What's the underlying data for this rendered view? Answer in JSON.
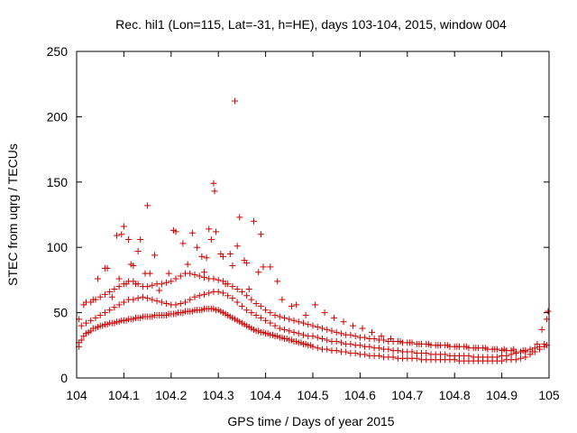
{
  "chart_data": {
    "type": "scatter",
    "title": "Rec. hil1 (Lon=115, Lat=-31, h=HE), days 103-104, 2015, window 004",
    "xlabel": "GPS time / Days of year 2015",
    "ylabel": "STEC from uqrg / TECUs",
    "xlim": [
      104,
      105
    ],
    "ylim": [
      0,
      250
    ],
    "xticks": [
      "104",
      "104.1",
      "104.2",
      "104.3",
      "104.4",
      "104.5",
      "104.6",
      "104.7",
      "104.8",
      "104.9",
      "105"
    ],
    "yticks": [
      "0",
      "50",
      "100",
      "150",
      "200",
      "250"
    ],
    "grid": false,
    "legend": "none",
    "marker": "plus",
    "colors": {
      "points": "#cc0000",
      "axes": "#000000"
    },
    "series": [
      {
        "x": [
          104.005,
          104.005,
          104.01,
          104.015,
          104.02,
          104.025,
          104.03,
          104.035,
          104.04,
          104.045,
          104.05,
          104.055,
          104.06,
          104.065,
          104.07,
          104.075,
          104.08,
          104.085,
          104.09,
          104.095,
          104.1,
          104.105,
          104.11,
          104.115,
          104.12,
          104.125,
          104.13,
          104.135,
          104.14,
          104.145,
          104.15,
          104.155,
          104.16,
          104.165,
          104.17,
          104.175,
          104.18,
          104.185,
          104.19,
          104.195,
          104.2,
          104.205,
          104.21,
          104.215,
          104.22,
          104.225,
          104.23,
          104.235,
          104.24,
          104.245,
          104.25,
          104.255,
          104.26,
          104.265,
          104.27,
          104.275,
          104.28,
          104.285,
          104.29,
          104.295,
          104.3,
          104.305,
          104.31,
          104.315,
          104.32,
          104.325,
          104.33,
          104.335,
          104.34,
          104.345,
          104.35,
          104.355,
          104.36,
          104.365,
          104.37,
          104.375,
          104.38,
          104.385,
          104.39,
          104.395,
          104.4,
          104.405,
          104.41,
          104.415,
          104.42,
          104.425,
          104.43,
          104.435,
          104.44,
          104.445,
          104.45,
          104.455,
          104.46,
          104.465,
          104.47,
          104.475,
          104.48,
          104.485,
          104.49,
          104.495,
          104.5,
          104.51,
          104.52,
          104.53,
          104.54,
          104.55,
          104.56,
          104.57,
          104.58,
          104.59,
          104.6,
          104.61,
          104.62,
          104.63,
          104.64,
          104.65,
          104.66,
          104.67,
          104.68,
          104.69,
          104.7,
          104.71,
          104.72,
          104.73,
          104.74,
          104.75,
          104.76,
          104.77,
          104.78,
          104.79,
          104.8,
          104.81,
          104.82,
          104.83,
          104.84,
          104.85,
          104.86,
          104.87,
          104.88,
          104.89,
          104.9,
          104.91,
          104.92,
          104.93,
          104.94,
          104.95,
          104.96,
          104.97,
          104.98,
          104.99,
          104.995
        ],
        "y": [
          24,
          27,
          29,
          32,
          34,
          35,
          36,
          38,
          38,
          39,
          40,
          40,
          41,
          41,
          42,
          42,
          42,
          43,
          43,
          44,
          44,
          44,
          45,
          45,
          45,
          46,
          46,
          46,
          47,
          47,
          47,
          47,
          47,
          48,
          48,
          48,
          48,
          48,
          48,
          49,
          49,
          49,
          49,
          50,
          50,
          50,
          51,
          51,
          51,
          51,
          52,
          52,
          52,
          52,
          53,
          53,
          53,
          53,
          53,
          52,
          52,
          51,
          50,
          49,
          48,
          47,
          46,
          45,
          44,
          43,
          42,
          41,
          40,
          39,
          38,
          37,
          36,
          36,
          35,
          35,
          34,
          34,
          33,
          33,
          32,
          32,
          31,
          31,
          30,
          30,
          29,
          29,
          28,
          28,
          27,
          27,
          26,
          26,
          25,
          25,
          24,
          23,
          22,
          22,
          21,
          21,
          20,
          20,
          19,
          19,
          18,
          18,
          17,
          17,
          17,
          16,
          16,
          16,
          15,
          15,
          15,
          15,
          15,
          14,
          14,
          14,
          14,
          14,
          14,
          14,
          14,
          13,
          13,
          13,
          13,
          13,
          13,
          13,
          13,
          13,
          13,
          14,
          14,
          14,
          15,
          16,
          18,
          20,
          22,
          24,
          25
        ]
      },
      {
        "x": [
          104.005,
          104.01,
          104.02,
          104.03,
          104.04,
          104.05,
          104.06,
          104.07,
          104.08,
          104.09,
          104.1,
          104.11,
          104.12,
          104.13,
          104.14,
          104.15,
          104.16,
          104.17,
          104.18,
          104.19,
          104.2,
          104.21,
          104.22,
          104.23,
          104.24,
          104.25,
          104.26,
          104.27,
          104.28,
          104.29,
          104.3,
          104.31,
          104.32,
          104.33,
          104.34,
          104.35,
          104.36,
          104.37,
          104.38,
          104.39,
          104.4,
          104.41,
          104.42,
          104.43,
          104.44,
          104.45,
          104.46,
          104.47,
          104.48,
          104.49,
          104.5,
          104.51,
          104.52,
          104.53,
          104.54,
          104.55,
          104.56,
          104.57,
          104.58,
          104.59,
          104.6,
          104.61,
          104.62,
          104.63,
          104.64,
          104.65,
          104.66,
          104.67,
          104.68,
          104.69,
          104.7,
          104.71,
          104.72,
          104.73,
          104.74,
          104.75,
          104.76,
          104.77,
          104.78,
          104.79,
          104.8,
          104.81,
          104.82,
          104.83,
          104.84,
          104.85,
          104.86,
          104.87,
          104.88,
          104.89,
          104.9,
          104.91,
          104.92,
          104.93,
          104.94,
          104.95,
          104.96,
          104.97,
          104.98,
          104.99
        ],
        "y": [
          45,
          40,
          42,
          44,
          46,
          48,
          50,
          52,
          54,
          56,
          58,
          60,
          60,
          61,
          62,
          61,
          60,
          59,
          58,
          57,
          56,
          56,
          57,
          58,
          60,
          62,
          63,
          64,
          65,
          66,
          66,
          65,
          63,
          61,
          58,
          55,
          52,
          50,
          48,
          46,
          44,
          42,
          40,
          38,
          37,
          36,
          35,
          34,
          33,
          32,
          32,
          31,
          30,
          29,
          28,
          28,
          27,
          26,
          26,
          25,
          25,
          24,
          24,
          23,
          23,
          22,
          22,
          21,
          21,
          20,
          20,
          20,
          19,
          19,
          19,
          18,
          18,
          18,
          18,
          17,
          17,
          17,
          17,
          17,
          16,
          16,
          16,
          16,
          16,
          16,
          17,
          17,
          18,
          19,
          20,
          21,
          22,
          23,
          24,
          26
        ]
      },
      {
        "x": [
          104.03,
          104.04,
          104.05,
          104.06,
          104.07,
          104.08,
          104.09,
          104.1,
          104.11,
          104.12,
          104.13,
          104.14,
          104.15,
          104.16,
          104.17,
          104.18,
          104.19,
          104.2,
          104.21,
          104.22,
          104.23,
          104.24,
          104.25,
          104.26,
          104.27,
          104.28,
          104.29,
          104.3,
          104.31,
          104.32,
          104.33,
          104.34,
          104.35,
          104.36,
          104.37,
          104.38,
          104.39,
          104.4,
          104.41,
          104.42,
          104.43,
          104.44,
          104.45,
          104.46,
          104.47,
          104.48,
          104.49,
          104.5,
          104.51,
          104.52,
          104.53,
          104.54,
          104.55,
          104.56,
          104.57,
          104.58,
          104.59,
          104.6,
          104.61,
          104.62,
          104.63,
          104.64,
          104.65,
          104.66,
          104.67,
          104.68,
          104.69,
          104.7,
          104.71,
          104.72,
          104.73,
          104.74,
          104.75,
          104.76,
          104.77,
          104.78,
          104.79,
          104.8,
          104.81,
          104.82,
          104.83,
          104.84,
          104.85,
          104.86,
          104.87,
          104.88,
          104.89,
          104.9,
          104.91,
          104.92,
          104.93,
          104.94,
          104.95
        ],
        "y": [
          58,
          60,
          62,
          64,
          66,
          68,
          70,
          72,
          74,
          74,
          72,
          70,
          70,
          71,
          72,
          72,
          73,
          74,
          76,
          78,
          80,
          80,
          79,
          78,
          77,
          76,
          76,
          75,
          74,
          72,
          70,
          68,
          66,
          63,
          60,
          57,
          55,
          52,
          50,
          48,
          47,
          46,
          45,
          44,
          43,
          42,
          41,
          40,
          39,
          38,
          37,
          36,
          35,
          34,
          33,
          33,
          32,
          31,
          31,
          30,
          30,
          29,
          29,
          28,
          28,
          28,
          27,
          27,
          27,
          26,
          26,
          26,
          25,
          25,
          25,
          25,
          24,
          24,
          24,
          24,
          23,
          23,
          23,
          23,
          22,
          22,
          22,
          21,
          21,
          21,
          20,
          20,
          20
        ]
      },
      {
        "x": [
          104.015,
          104.02,
          104.035,
          104.045,
          104.06,
          104.065,
          104.075,
          104.085,
          104.09,
          104.095,
          104.1,
          104.105,
          104.11,
          104.115,
          104.12,
          104.125,
          104.13,
          104.135,
          104.145,
          104.15,
          104.155,
          104.165,
          104.175,
          104.195,
          104.205,
          104.21,
          104.225,
          104.235,
          104.245,
          104.255,
          104.265,
          104.27,
          104.275,
          104.28,
          104.285,
          104.29,
          104.292,
          104.295,
          104.305,
          104.31,
          104.315,
          104.325,
          104.33,
          104.335,
          104.34,
          104.345,
          104.355,
          104.36,
          104.365,
          104.375,
          104.385,
          104.39,
          104.395,
          104.41,
          104.425,
          104.435,
          104.455,
          104.465,
          104.485,
          104.505,
          104.525,
          104.545,
          104.565,
          104.585,
          104.605,
          104.625,
          104.645,
          104.665,
          104.685,
          104.705,
          104.725,
          104.745,
          104.765,
          104.785,
          104.805,
          104.825,
          104.845,
          104.865,
          104.885,
          104.905,
          104.925,
          104.945,
          104.965,
          104.975,
          104.985,
          104.995,
          104.998
        ],
        "y": [
          56,
          58,
          60,
          76,
          84,
          84,
          62,
          109,
          76,
          110,
          116,
          72,
          106,
          87,
          86,
          72,
          97,
          106,
          80,
          132,
          80,
          94,
          67,
          80,
          113,
          112,
          103,
          87,
          111,
          100,
          93,
          81,
          92,
          114,
          106,
          149,
          143,
          112,
          95,
          93,
          72,
          95,
          86,
          212,
          101,
          123,
          90,
          88,
          68,
          120,
          81,
          110,
          85,
          85,
          74,
          60,
          55,
          56,
          48,
          56,
          50,
          46,
          43,
          40,
          38,
          35,
          32,
          30,
          28,
          27,
          26,
          26,
          25,
          25,
          24,
          24,
          23,
          23,
          22,
          22,
          22,
          21,
          20,
          26,
          37,
          45,
          51
        ]
      }
    ]
  }
}
